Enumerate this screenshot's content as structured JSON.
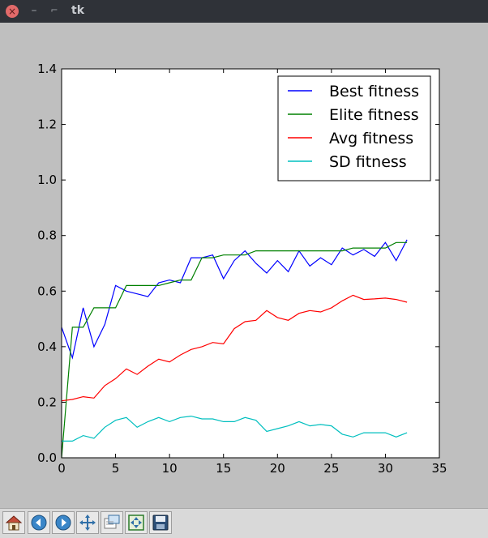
{
  "window": {
    "title": "tk"
  },
  "window_controls": {
    "close_glyph": "×",
    "minimize_glyph": "–",
    "maximize_glyph": "⌐"
  },
  "toolbar": {
    "buttons": [
      {
        "name": "home-button",
        "icon": "home-icon"
      },
      {
        "name": "back-button",
        "icon": "arrow-left-icon"
      },
      {
        "name": "forward-button",
        "icon": "arrow-right-icon"
      },
      {
        "name": "pan-button",
        "icon": "move-icon"
      },
      {
        "name": "zoom-button",
        "icon": "zoom-rect-icon"
      },
      {
        "name": "configure-subplots-button",
        "icon": "subplots-icon"
      },
      {
        "name": "save-button",
        "icon": "floppy-icon"
      }
    ]
  },
  "chart_data": {
    "type": "line",
    "title": "",
    "xlabel": "",
    "ylabel": "",
    "xlim": [
      0,
      35
    ],
    "ylim": [
      0,
      1.4
    ],
    "xticks": [
      "0",
      "5",
      "10",
      "15",
      "20",
      "25",
      "30",
      "35"
    ],
    "yticks": [
      "0.0",
      "0.2",
      "0.4",
      "0.6",
      "0.8",
      "1.0",
      "1.2",
      "1.4"
    ],
    "grid": false,
    "legend_position": "top-right",
    "x": [
      0,
      1,
      2,
      3,
      4,
      5,
      6,
      7,
      8,
      9,
      10,
      11,
      12,
      13,
      14,
      15,
      16,
      17,
      18,
      19,
      20,
      21,
      22,
      23,
      24,
      25,
      26,
      27,
      28,
      29,
      30,
      31,
      32
    ],
    "series": [
      {
        "name": "Best fitness",
        "color": "#0000ff",
        "values": [
          0.47,
          0.36,
          0.54,
          0.4,
          0.48,
          0.62,
          0.6,
          0.59,
          0.58,
          0.63,
          0.64,
          0.63,
          0.72,
          0.72,
          0.73,
          0.645,
          0.71,
          0.745,
          0.7,
          0.665,
          0.71,
          0.67,
          0.745,
          0.69,
          0.72,
          0.695,
          0.755,
          0.73,
          0.75,
          0.725,
          0.775,
          0.71,
          0.785
        ]
      },
      {
        "name": "Elite fitness",
        "color": "#008000",
        "values": [
          0.0,
          0.47,
          0.47,
          0.54,
          0.54,
          0.54,
          0.62,
          0.62,
          0.62,
          0.62,
          0.63,
          0.64,
          0.64,
          0.72,
          0.72,
          0.73,
          0.73,
          0.73,
          0.745,
          0.745,
          0.745,
          0.745,
          0.745,
          0.745,
          0.745,
          0.745,
          0.745,
          0.755,
          0.755,
          0.755,
          0.755,
          0.775,
          0.775
        ]
      },
      {
        "name": "Avg fitness",
        "color": "#ff0000",
        "values": [
          0.205,
          0.21,
          0.22,
          0.215,
          0.26,
          0.285,
          0.32,
          0.3,
          0.33,
          0.355,
          0.345,
          0.37,
          0.39,
          0.4,
          0.415,
          0.41,
          0.465,
          0.49,
          0.495,
          0.53,
          0.505,
          0.495,
          0.52,
          0.53,
          0.525,
          0.54,
          0.565,
          0.585,
          0.57,
          0.572,
          0.575,
          0.57,
          0.56
        ]
      },
      {
        "name": "SD fitness",
        "color": "#00bfbf",
        "values": [
          0.06,
          0.06,
          0.08,
          0.07,
          0.11,
          0.135,
          0.145,
          0.11,
          0.13,
          0.145,
          0.13,
          0.145,
          0.15,
          0.14,
          0.14,
          0.13,
          0.13,
          0.145,
          0.135,
          0.095,
          0.105,
          0.115,
          0.13,
          0.115,
          0.12,
          0.115,
          0.085,
          0.075,
          0.09,
          0.09,
          0.09,
          0.075,
          0.09
        ]
      }
    ]
  }
}
